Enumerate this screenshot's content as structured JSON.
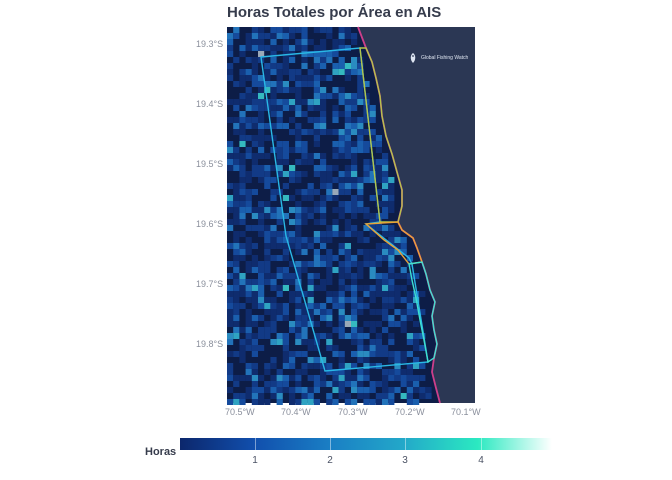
{
  "title": "Horas Totales por Área en AIS",
  "map": {
    "y_labels": [
      "19.3°S",
      "19.4°S",
      "19.5°S",
      "19.6°S",
      "19.7°S",
      "19.8°S"
    ],
    "x_labels": [
      "70.5°W",
      "70.4°W",
      "70.3°W",
      "70.2°W",
      "70.1°W"
    ],
    "land_color": "#2b3754",
    "ocean_color": "#0d1d47",
    "logo_text": "Global Fishing Watch",
    "logo_icon": "fish-icon",
    "boundary_colors": {
      "large_area": "#29b8e6",
      "north_coastal": "#b3c44a",
      "middle_coastal": "#e8a237",
      "south_coastal": "#3fe0cf",
      "coastline": "#cc3f8a"
    }
  },
  "legend": {
    "title": "Horas",
    "ticks": [
      "1",
      "2",
      "3",
      "4"
    ],
    "colors": [
      "#0c276c",
      "#114fad",
      "#1a7ec4",
      "#23a8c9",
      "#2be9c1",
      "#ffffff"
    ]
  }
}
